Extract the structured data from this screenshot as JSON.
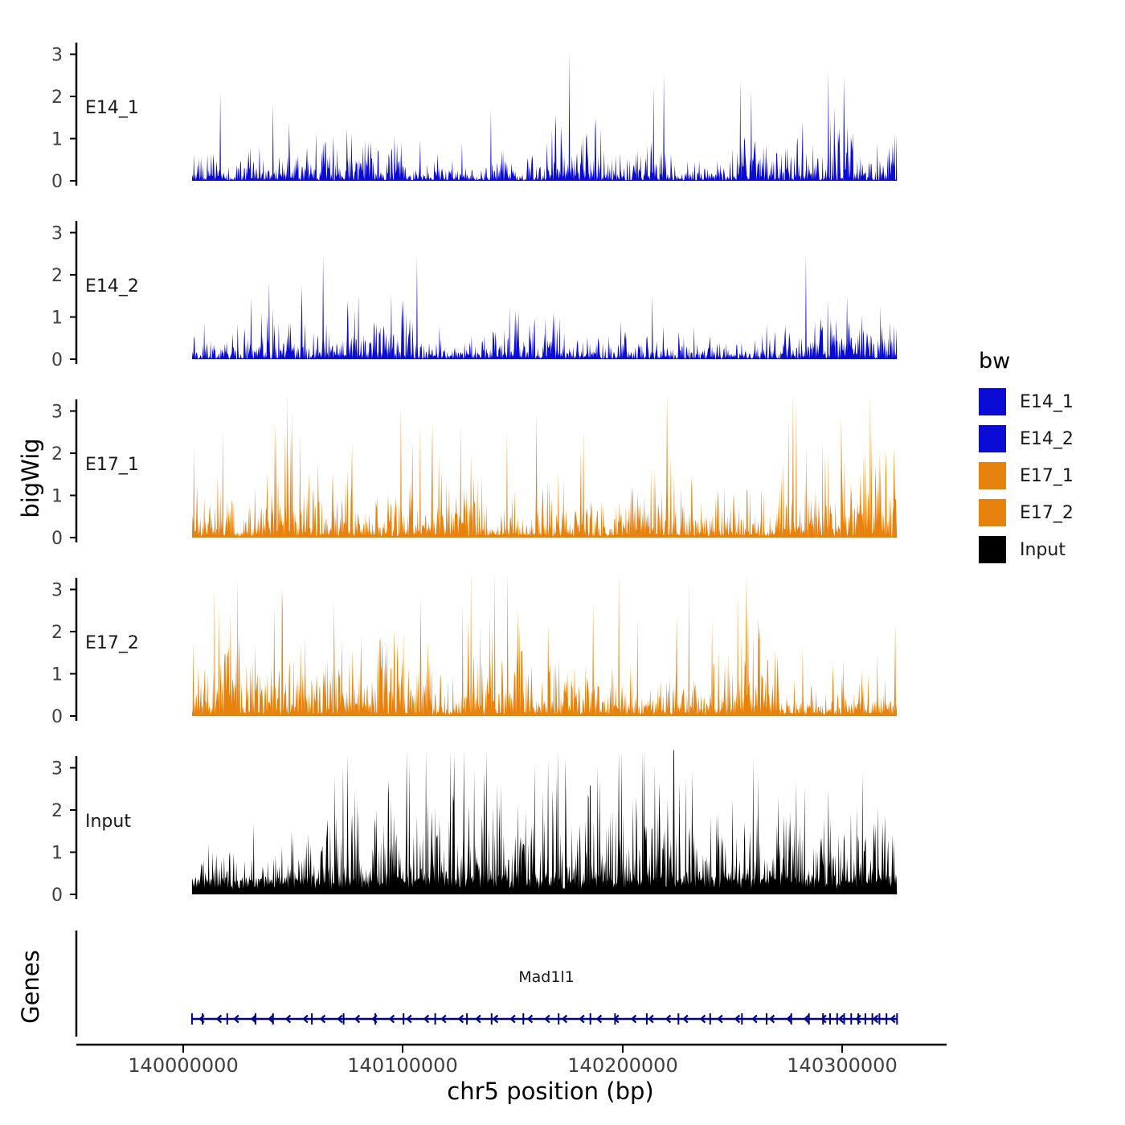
{
  "chart_data": {
    "type": "area",
    "title": "",
    "xlabel": "chr5 position (bp)",
    "ylabel": "bigWig",
    "grid": false,
    "legend_position": "right",
    "x_ticks": [
      140000000,
      140100000,
      140200000,
      140300000
    ],
    "x_tick_labels": [
      "140000000",
      "140100000",
      "140200000",
      "140300000"
    ],
    "x_range_bp": [
      139951000,
      140331000
    ],
    "signal_range_bp": [
      140004000,
      140325000
    ],
    "y_ticks": [
      "0",
      "1",
      "2",
      "3"
    ],
    "y_max": 3.5,
    "tracks": [
      {
        "name": "E14_1",
        "color": "#0B0BD6",
        "seed": 101,
        "mean": 0.34,
        "gap_prob": 0.12,
        "floor": 0.02,
        "peak": 2.6
      },
      {
        "name": "E14_2",
        "color": "#0B0BD6",
        "seed": 202,
        "mean": 0.36,
        "gap_prob": 0.12,
        "floor": 0.02,
        "peak": 3.1
      },
      {
        "name": "E17_1",
        "color": "#E8820E",
        "seed": 303,
        "mean": 0.5,
        "gap_prob": 0.06,
        "floor": 0.06,
        "peak": 3.0
      },
      {
        "name": "E17_2",
        "color": "#E8820E",
        "seed": 404,
        "mean": 0.5,
        "gap_prob": 0.06,
        "floor": 0.06,
        "peak": 3.1
      },
      {
        "name": "Input",
        "color": "#000000",
        "seed": 505,
        "mean": 0.62,
        "gap_prob": 0.02,
        "floor": 0.3,
        "peak": 3.4
      }
    ],
    "genes_panel": {
      "label": "Genes",
      "gene": {
        "name": "Mad1l1",
        "strand": "-",
        "color": "#00008B",
        "exon_fracs": [
          0,
          0.015,
          0.05,
          0.09,
          0.115,
          0.17,
          0.215,
          0.26,
          0.3,
          0.345,
          0.39,
          0.425,
          0.47,
          0.52,
          0.565,
          0.6,
          0.645,
          0.69,
          0.735,
          0.78,
          0.815,
          0.85,
          0.875,
          0.895,
          0.905,
          0.915,
          0.925,
          0.935,
          0.945,
          0.955,
          0.965,
          0.975,
          0.985,
          1.0
        ]
      }
    },
    "legend": {
      "title": "bw",
      "items": [
        {
          "label": "E14_1",
          "color": "#0B0BD6"
        },
        {
          "label": "E14_2",
          "color": "#0B0BD6"
        },
        {
          "label": "E17_1",
          "color": "#E8820E"
        },
        {
          "label": "E17_2",
          "color": "#E8820E"
        },
        {
          "label": "Input",
          "color": "#000000"
        }
      ]
    }
  }
}
